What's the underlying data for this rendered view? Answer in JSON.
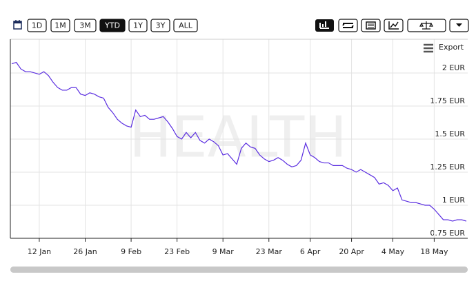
{
  "toolbar": {
    "ranges": [
      "1D",
      "1M",
      "3M",
      "YTD",
      "1Y",
      "3Y",
      "ALL"
    ],
    "selected_range": "YTD",
    "export": "Export"
  },
  "chart_data": {
    "type": "line",
    "watermark": "HEALTH",
    "categories": [
      null,
      null,
      null,
      null,
      null,
      null,
      "12 Jan",
      null,
      null,
      null,
      null,
      null,
      null,
      null,
      null,
      null,
      "26 Jan",
      null,
      null,
      null,
      null,
      null,
      null,
      null,
      null,
      null,
      "9 Feb",
      null,
      null,
      null,
      null,
      null,
      null,
      null,
      null,
      null,
      "23 Feb",
      null,
      null,
      null,
      null,
      null,
      null,
      null,
      null,
      null,
      "9 Mar",
      null,
      null,
      null,
      null,
      null,
      null,
      null,
      null,
      null,
      "23 Mar",
      null,
      null,
      null,
      null,
      null,
      null,
      null,
      null,
      "6 Apr",
      null,
      null,
      null,
      null,
      null,
      null,
      null,
      null,
      "20 Apr",
      null,
      null,
      null,
      null,
      null,
      null,
      null,
      null,
      "4 May",
      null,
      null,
      null,
      null,
      null,
      null,
      null,
      null,
      "18 May",
      null,
      null,
      null,
      null,
      null,
      null,
      null
    ],
    "series": [
      {
        "color": "#5a2de0",
        "values": [
          2.07,
          2.08,
          2.03,
          2.01,
          2.01,
          2.0,
          1.99,
          2.01,
          1.98,
          1.93,
          1.89,
          1.87,
          1.87,
          1.89,
          1.89,
          1.84,
          1.83,
          1.85,
          1.84,
          1.82,
          1.81,
          1.74,
          1.7,
          1.65,
          1.62,
          1.6,
          1.59,
          1.72,
          1.67,
          1.68,
          1.65,
          1.65,
          1.66,
          1.67,
          1.63,
          1.58,
          1.52,
          1.5,
          1.55,
          1.51,
          1.55,
          1.49,
          1.47,
          1.5,
          1.48,
          1.45,
          1.38,
          1.39,
          1.35,
          1.31,
          1.43,
          1.47,
          1.44,
          1.43,
          1.38,
          1.35,
          1.33,
          1.34,
          1.36,
          1.34,
          1.31,
          1.29,
          1.3,
          1.34,
          1.47,
          1.38,
          1.36,
          1.33,
          1.32,
          1.32,
          1.3,
          1.3,
          1.3,
          1.28,
          1.27,
          1.25,
          1.27,
          1.25,
          1.23,
          1.21,
          1.16,
          1.17,
          1.15,
          1.11,
          1.13,
          1.04,
          1.03,
          1.02,
          1.02,
          1.01,
          1.0,
          1.0,
          0.97,
          0.93,
          0.89,
          0.89,
          0.88,
          0.89,
          0.89,
          0.88
        ]
      }
    ],
    "ylim": [
      0.75,
      2.255
    ],
    "yticks": [
      {
        "value": 0.75,
        "label": "0.75 EUR"
      },
      {
        "value": 1,
        "label": "1 EUR"
      },
      {
        "value": 1.25,
        "label": "1.25 EUR"
      },
      {
        "value": 1.5,
        "label": "1.5 EUR"
      },
      {
        "value": 1.75,
        "label": "1.75 EUR"
      },
      {
        "value": 2,
        "label": "2 EUR"
      }
    ],
    "grid": true
  }
}
